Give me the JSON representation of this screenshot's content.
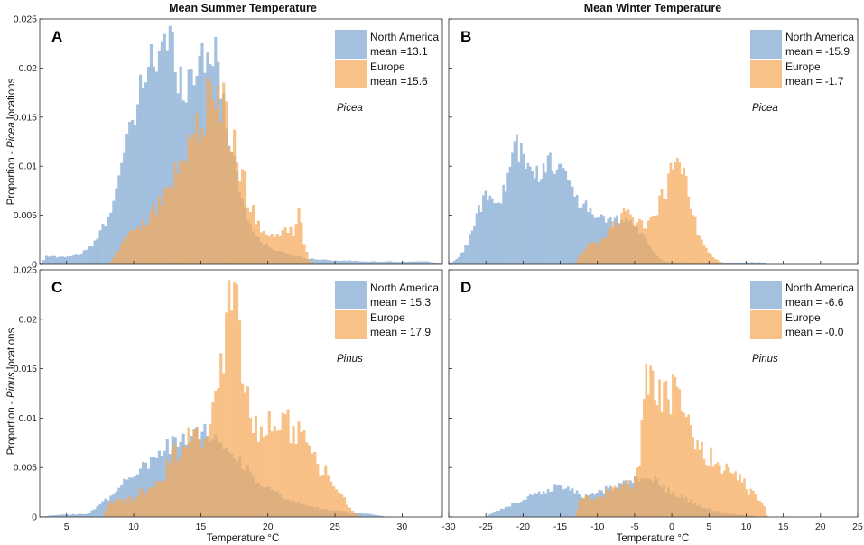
{
  "figure": {
    "col_titles": [
      "Mean Summer Temperature",
      "Mean Winter Temperature"
    ],
    "ylabels": [
      {
        "prefix": "Proportion - ",
        "genus": "Picea",
        "suffix": " locations"
      },
      {
        "prefix": "Proportion - ",
        "genus": "Pinus",
        "suffix": " locations"
      }
    ],
    "xlabel": "Temperature °C"
  },
  "colors": {
    "north_america": "#7fa8d1",
    "europe": "#f5a95a",
    "overlap": "#c2945f",
    "axis": "#262626"
  },
  "chart_data": [
    {
      "type": "histogram",
      "panel": "A",
      "genus": "Picea",
      "xlim": [
        3,
        33
      ],
      "ylim": [
        0,
        0.025
      ],
      "xticks": [
        5,
        10,
        15,
        20,
        25,
        30
      ],
      "yticks": [
        0,
        0.005,
        0.01,
        0.015,
        0.02,
        0.025
      ],
      "ytick_labels": [
        "0",
        "0.005",
        "0.01",
        "0.015",
        "0.02",
        "0.025"
      ],
      "bin_width": 0.2,
      "series": [
        {
          "name": "North America",
          "mean_label": "mean =13.1",
          "color": "#7fa8d1",
          "profile": [
            [
              3,
              0
            ],
            [
              3.5,
              0.0008
            ],
            [
              5,
              0.0008
            ],
            [
              6,
              0.001
            ],
            [
              7,
              0.002
            ],
            [
              8,
              0.0045
            ],
            [
              9,
              0.0095
            ],
            [
              10,
              0.0145
            ],
            [
              10.6,
              0.018
            ],
            [
              11.2,
              0.0215
            ],
            [
              12,
              0.021
            ],
            [
              12.6,
              0.023
            ],
            [
              13.4,
              0.0195
            ],
            [
              14.2,
              0.0185
            ],
            [
              15,
              0.0215
            ],
            [
              15.8,
              0.0225
            ],
            [
              16.5,
              0.018
            ],
            [
              17.3,
              0.012
            ],
            [
              18,
              0.007
            ],
            [
              18.7,
              0.004
            ],
            [
              19.5,
              0.0022
            ],
            [
              21,
              0.0012
            ],
            [
              23,
              0.0006
            ],
            [
              25,
              0.0004
            ],
            [
              28,
              0.0003
            ],
            [
              32,
              0.0003
            ],
            [
              33,
              0
            ]
          ],
          "noise": 0.13
        },
        {
          "name": "Europe",
          "mean_label": "mean =15.6",
          "color": "#f5a95a",
          "profile": [
            [
              3,
              0
            ],
            [
              8.2,
              0
            ],
            [
              8.8,
              0.0015
            ],
            [
              10,
              0.0035
            ],
            [
              11,
              0.005
            ],
            [
              12,
              0.0065
            ],
            [
              13,
              0.0085
            ],
            [
              14,
              0.012
            ],
            [
              14.8,
              0.0145
            ],
            [
              15.5,
              0.016
            ],
            [
              16.2,
              0.0175
            ],
            [
              16.8,
              0.016
            ],
            [
              17.5,
              0.012
            ],
            [
              18.3,
              0.008
            ],
            [
              19,
              0.005
            ],
            [
              20,
              0.0025
            ],
            [
              21,
              0.003
            ],
            [
              22,
              0.0035
            ],
            [
              22.3,
              0.0055
            ],
            [
              22.6,
              0.003
            ],
            [
              23,
              0.0005
            ],
            [
              23.5,
              0
            ],
            [
              33,
              0
            ]
          ],
          "noise": 0.2
        }
      ]
    },
    {
      "type": "histogram",
      "panel": "B",
      "genus": "Picea",
      "xlim": [
        -30,
        25
      ],
      "ylim": [
        0,
        0.025
      ],
      "xticks": [
        -30,
        -25,
        -20,
        -15,
        -10,
        -5,
        0,
        5,
        10,
        15,
        20,
        25
      ],
      "yticks": [
        0,
        0.005,
        0.01,
        0.015,
        0.02,
        0.025
      ],
      "bin_width": 0.3,
      "series": [
        {
          "name": "North America",
          "mean_label": "mean = -15.9",
          "color": "#7fa8d1",
          "profile": [
            [
              -30,
              0
            ],
            [
              -29,
              0.0005
            ],
            [
              -28,
              0.0015
            ],
            [
              -27,
              0.003
            ],
            [
              -26,
              0.0055
            ],
            [
              -25,
              0.007
            ],
            [
              -24,
              0.0065
            ],
            [
              -23,
              0.006
            ],
            [
              -22,
              0.0095
            ],
            [
              -21,
              0.012
            ],
            [
              -20,
              0.0105
            ],
            [
              -19,
              0.0095
            ],
            [
              -18,
              0.009
            ],
            [
              -17,
              0.0105
            ],
            [
              -16,
              0.011
            ],
            [
              -15,
              0.0095
            ],
            [
              -14,
              0.0085
            ],
            [
              -13,
              0.007
            ],
            [
              -12,
              0.006
            ],
            [
              -11,
              0.0055
            ],
            [
              -10,
              0.005
            ],
            [
              -9,
              0.0045
            ],
            [
              -8,
              0.0042
            ],
            [
              -7,
              0.0045
            ],
            [
              -6,
              0.0048
            ],
            [
              -5,
              0.004
            ],
            [
              -4,
              0.003
            ],
            [
              -3,
              0.0018
            ],
            [
              -2,
              0.0008
            ],
            [
              -1,
              0.0003
            ],
            [
              2,
              0.0002
            ],
            [
              7,
              0.0002
            ],
            [
              10,
              0.0002
            ],
            [
              12,
              0.0002
            ],
            [
              13,
              0
            ]
          ],
          "noise": 0.15
        },
        {
          "name": "Europe",
          "mean_label": "mean = -1.7",
          "color": "#f5a95a",
          "profile": [
            [
              -30,
              0
            ],
            [
              -13,
              0
            ],
            [
              -12,
              0.0015
            ],
            [
              -11,
              0.002
            ],
            [
              -10,
              0.002
            ],
            [
              -9,
              0.0028
            ],
            [
              -8,
              0.0038
            ],
            [
              -7,
              0.0048
            ],
            [
              -6,
              0.0055
            ],
            [
              -5,
              0.0045
            ],
            [
              -4,
              0.004
            ],
            [
              -3,
              0.0045
            ],
            [
              -2,
              0.0058
            ],
            [
              -1,
              0.0075
            ],
            [
              0,
              0.0095
            ],
            [
              0.8,
              0.011
            ],
            [
              1.5,
              0.0095
            ],
            [
              2.5,
              0.006
            ],
            [
              3.5,
              0.0035
            ],
            [
              4.5,
              0.002
            ],
            [
              5.5,
              0.0008
            ],
            [
              6.3,
              0.0004
            ],
            [
              7,
              0
            ],
            [
              25,
              0
            ]
          ],
          "noise": 0.18
        }
      ]
    },
    {
      "type": "histogram",
      "panel": "C",
      "genus": "Pinus",
      "xlim": [
        3,
        33
      ],
      "ylim": [
        0,
        0.025
      ],
      "xticks": [
        5,
        10,
        15,
        20,
        25,
        30
      ],
      "yticks": [
        0,
        0.005,
        0.01,
        0.015,
        0.02,
        0.025
      ],
      "ytick_labels": [
        "0",
        "0.005",
        "0.01",
        "0.015",
        "0.02",
        "0.025"
      ],
      "bin_width": 0.2,
      "series": [
        {
          "name": "North America",
          "mean_label": "mean = 15.3",
          "color": "#7fa8d1",
          "profile": [
            [
              3,
              0
            ],
            [
              4,
              0.0002
            ],
            [
              6.5,
              0.0003
            ],
            [
              7.2,
              0.001
            ],
            [
              8,
              0.0018
            ],
            [
              9,
              0.003
            ],
            [
              10,
              0.0045
            ],
            [
              11,
              0.0055
            ],
            [
              12,
              0.0065
            ],
            [
              13,
              0.0075
            ],
            [
              14,
              0.0082
            ],
            [
              15,
              0.0088
            ],
            [
              16,
              0.0082
            ],
            [
              17,
              0.0072
            ],
            [
              18,
              0.0055
            ],
            [
              19,
              0.004
            ],
            [
              20,
              0.003
            ],
            [
              21,
              0.002
            ],
            [
              22,
              0.0015
            ],
            [
              24,
              0.0008
            ],
            [
              26,
              0.0005
            ],
            [
              27.5,
              0.0003
            ],
            [
              29,
              0
            ],
            [
              33,
              0
            ]
          ],
          "noise": 0.13
        },
        {
          "name": "Europe",
          "mean_label": "mean = 17.9",
          "color": "#f5a95a",
          "profile": [
            [
              3,
              0
            ],
            [
              7.8,
              0
            ],
            [
              8,
              0.0012
            ],
            [
              10,
              0.002
            ],
            [
              11,
              0.003
            ],
            [
              12,
              0.004
            ],
            [
              13,
              0.006
            ],
            [
              14,
              0.008
            ],
            [
              15,
              0.0085
            ],
            [
              16,
              0.01
            ],
            [
              16.5,
              0.015
            ],
            [
              17,
              0.022
            ],
            [
              17.6,
              0.021
            ],
            [
              18.3,
              0.013
            ],
            [
              19,
              0.0085
            ],
            [
              20,
              0.009
            ],
            [
              21,
              0.0095
            ],
            [
              22,
              0.0088
            ],
            [
              23,
              0.0072
            ],
            [
              24,
              0.005
            ],
            [
              25,
              0.003
            ],
            [
              25.8,
              0.0015
            ],
            [
              26.6,
              0.0002
            ],
            [
              27,
              0
            ],
            [
              33,
              0
            ]
          ],
          "noise": 0.2
        }
      ]
    },
    {
      "type": "histogram",
      "panel": "D",
      "genus": "Pinus",
      "xlim": [
        -30,
        25
      ],
      "ylim": [
        0,
        0.025
      ],
      "xticks": [
        -30,
        -25,
        -20,
        -15,
        -10,
        -5,
        0,
        5,
        10,
        15,
        20,
        25
      ],
      "yticks": [
        0,
        0.005,
        0.01,
        0.015,
        0.02,
        0.025
      ],
      "bin_width": 0.3,
      "series": [
        {
          "name": "North America",
          "mean_label": "mean = -6.6",
          "color": "#7fa8d1",
          "profile": [
            [
              -30,
              0
            ],
            [
              -25,
              0
            ],
            [
              -24,
              0.0005
            ],
            [
              -22,
              0.001
            ],
            [
              -20,
              0.0018
            ],
            [
              -18,
              0.0025
            ],
            [
              -16,
              0.003
            ],
            [
              -15,
              0.0032
            ],
            [
              -14,
              0.003
            ],
            [
              -13,
              0.0025
            ],
            [
              -12,
              0.002
            ],
            [
              -10,
              0.0025
            ],
            [
              -8,
              0.003
            ],
            [
              -6,
              0.0035
            ],
            [
              -4,
              0.004
            ],
            [
              -3,
              0.0045
            ],
            [
              -2,
              0.0035
            ],
            [
              0,
              0.0025
            ],
            [
              2,
              0.0018
            ],
            [
              4,
              0.001
            ],
            [
              6,
              0.0006
            ],
            [
              8,
              0.0003
            ],
            [
              10,
              0.0002
            ],
            [
              12,
              0
            ],
            [
              25,
              0
            ]
          ],
          "noise": 0.14
        },
        {
          "name": "Europe",
          "mean_label": "mean = -0.0",
          "color": "#f5a95a",
          "profile": [
            [
              -30,
              0
            ],
            [
              -13,
              0
            ],
            [
              -12.5,
              0.0015
            ],
            [
              -11,
              0.002
            ],
            [
              -9,
              0.0025
            ],
            [
              -7,
              0.003
            ],
            [
              -5,
              0.0035
            ],
            [
              -4.5,
              0.005
            ],
            [
              -4,
              0.009
            ],
            [
              -3.5,
              0.013
            ],
            [
              -3,
              0.016
            ],
            [
              -2.5,
              0.015
            ],
            [
              -1.5,
              0.013
            ],
            [
              -0.5,
              0.0125
            ],
            [
              0.5,
              0.012
            ],
            [
              1.5,
              0.0105
            ],
            [
              2.5,
              0.0085
            ],
            [
              3.5,
              0.007
            ],
            [
              4.5,
              0.0065
            ],
            [
              5.5,
              0.006
            ],
            [
              6.5,
              0.005
            ],
            [
              7.5,
              0.0045
            ],
            [
              8.5,
              0.004
            ],
            [
              9.5,
              0.0035
            ],
            [
              10.5,
              0.0025
            ],
            [
              11.5,
              0.002
            ],
            [
              12.3,
              0.0015
            ],
            [
              12.8,
              0
            ],
            [
              25,
              0
            ]
          ],
          "noise": 0.2
        }
      ]
    }
  ]
}
